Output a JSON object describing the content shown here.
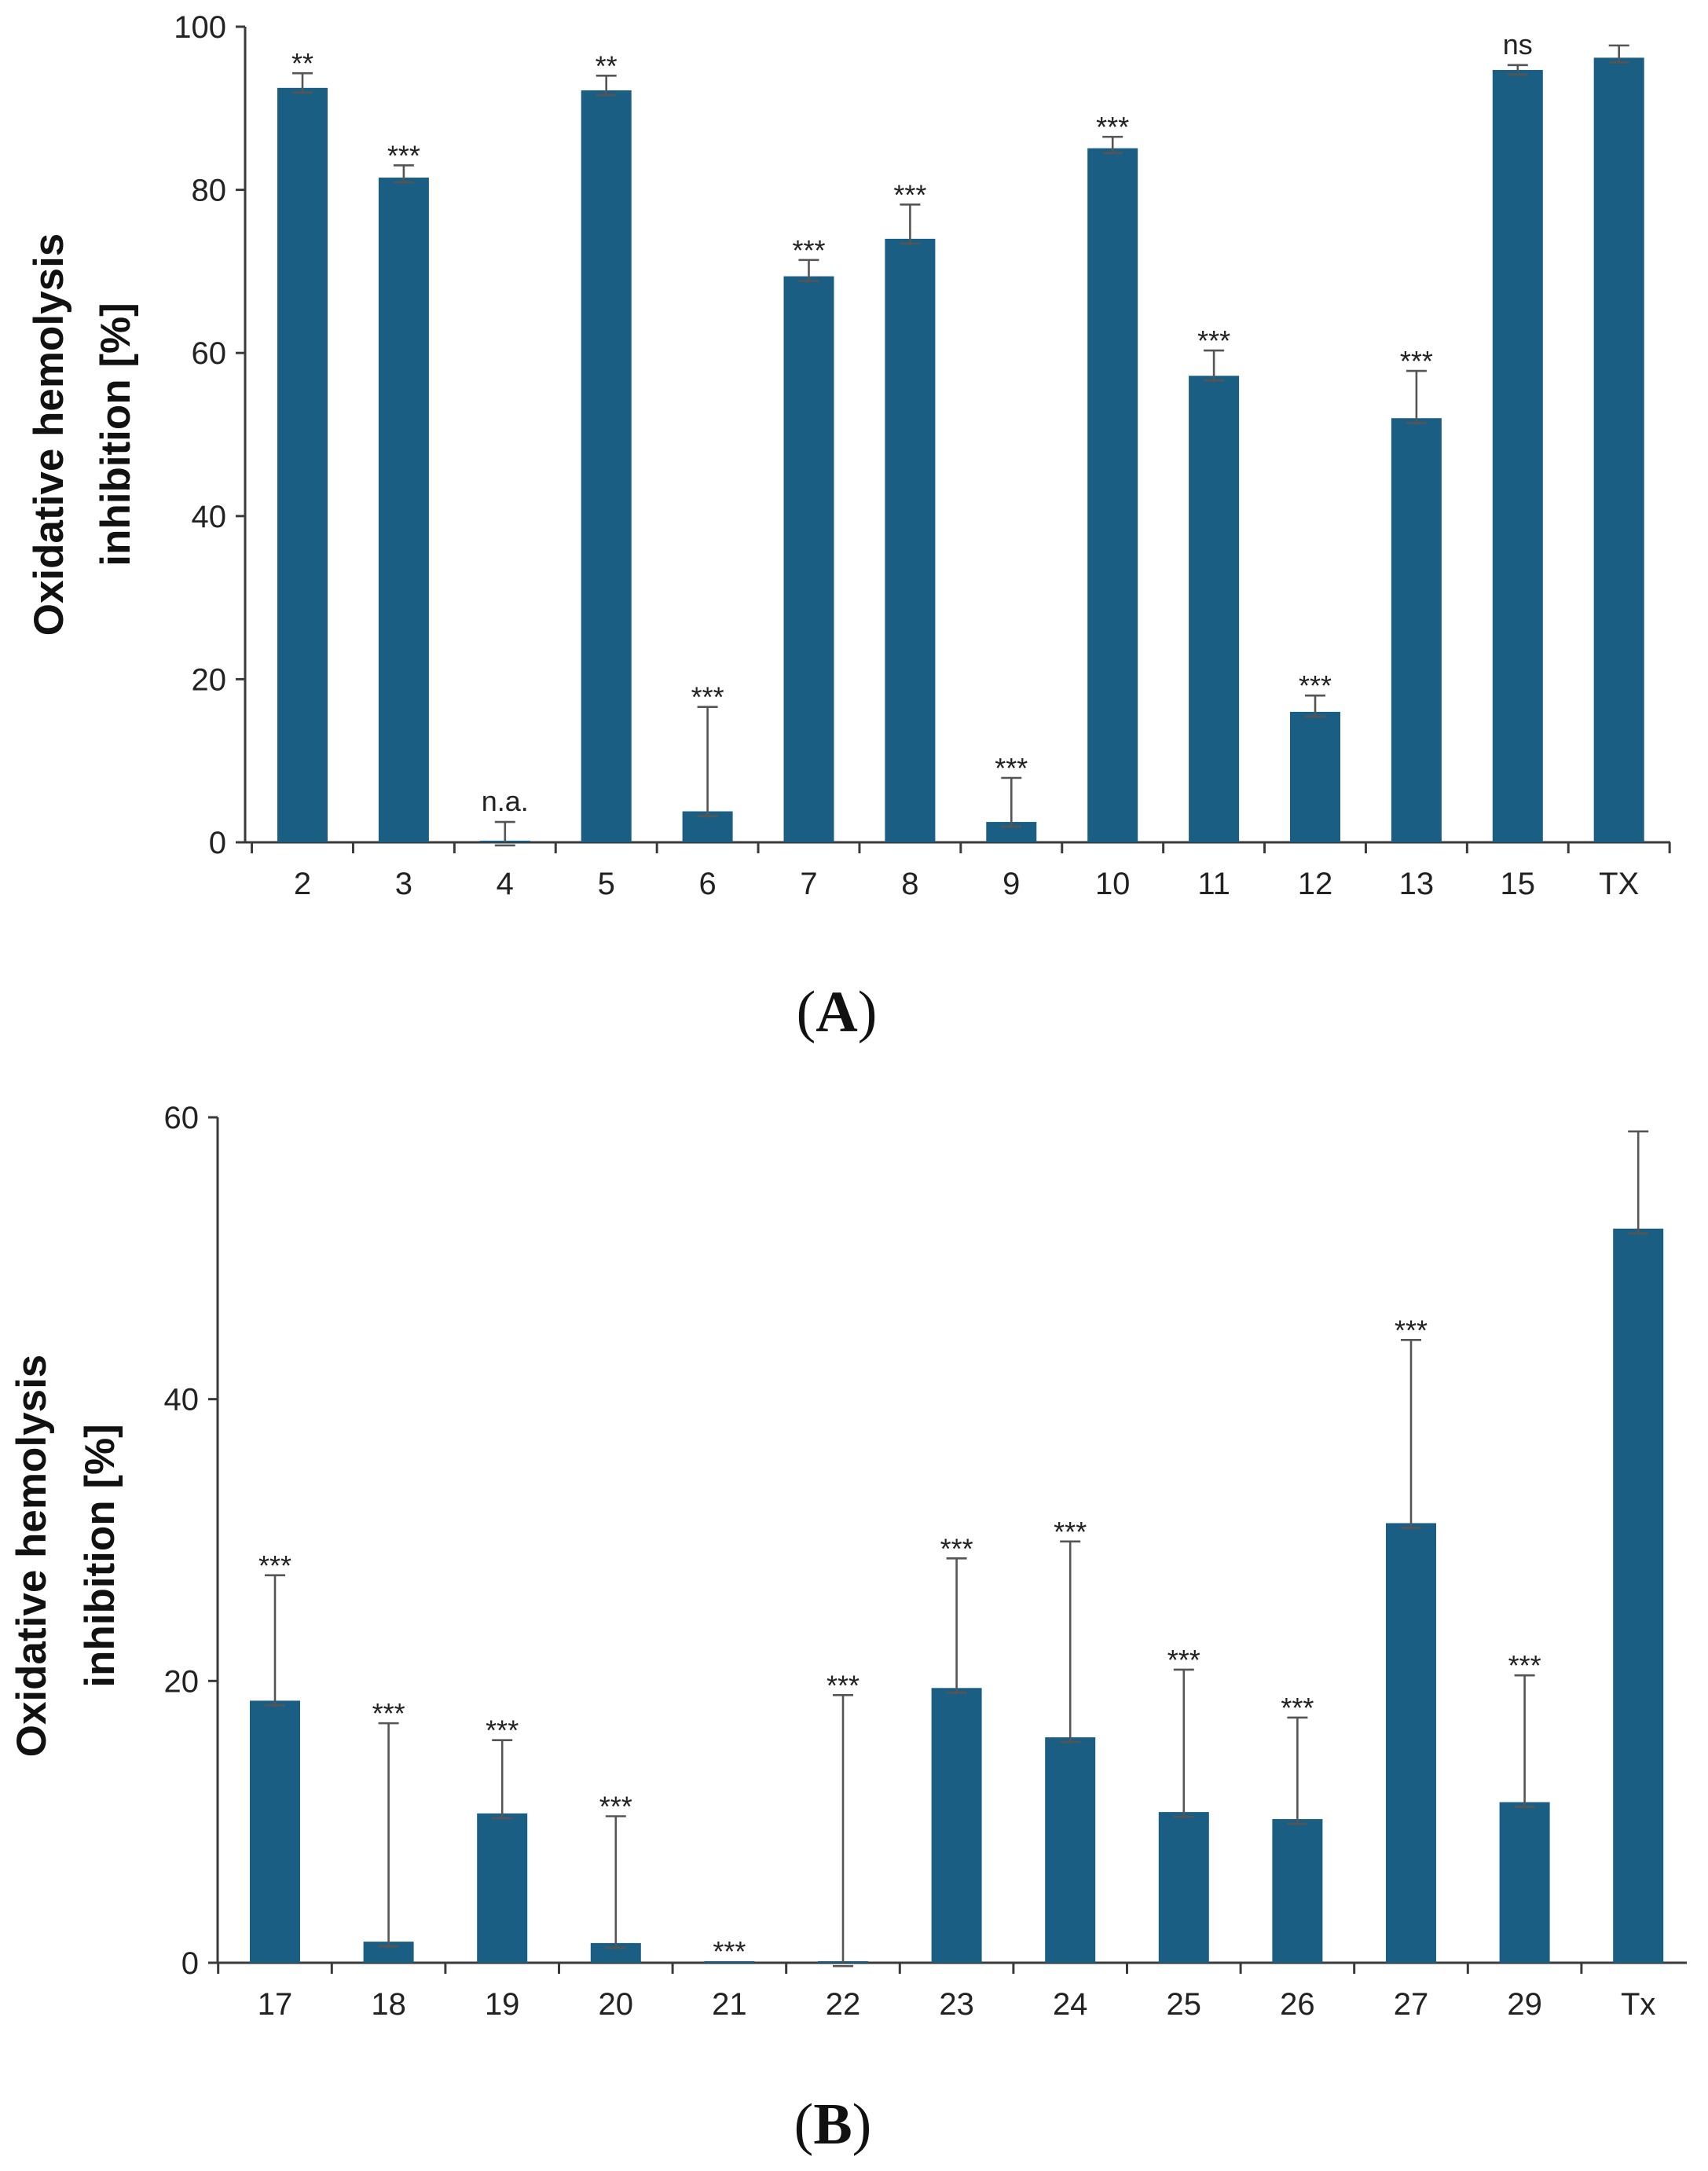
{
  "chart_data": [
    {
      "type": "bar",
      "panel_label": "A",
      "ylabel_line1": "Oxidative hemolysis",
      "ylabel_line2": "inhibition [%]",
      "ylim": [
        0,
        100
      ],
      "yticks": [
        0,
        20,
        40,
        60,
        80,
        100
      ],
      "categories": [
        "2",
        "3",
        "4",
        "5",
        "6",
        "7",
        "8",
        "9",
        "10",
        "11",
        "12",
        "13",
        "15",
        "TX"
      ],
      "values": [
        92.5,
        81.5,
        0.2,
        92.2,
        3.8,
        69.4,
        74.0,
        2.5,
        85.1,
        57.2,
        16.0,
        52.0,
        94.7,
        96.2
      ],
      "errors": [
        1.8,
        1.5,
        2.3,
        1.8,
        12.8,
        2.0,
        4.2,
        5.4,
        1.4,
        3.1,
        2.0,
        5.8,
        0.6,
        1.5
      ],
      "significance": [
        "**",
        "***",
        "n.a.",
        "**",
        "***",
        "***",
        "***",
        "***",
        "***",
        "***",
        "***",
        "***",
        "ns",
        ""
      ],
      "bar_color": "#1b5e83"
    },
    {
      "type": "bar",
      "panel_label": "B",
      "ylabel_line1": "Oxidative hemolysis",
      "ylabel_line2": "inhibition [%]",
      "ylim": [
        0,
        60
      ],
      "yticks": [
        0,
        20,
        40,
        60
      ],
      "categories": [
        "17",
        "18",
        "19",
        "20",
        "21",
        "22",
        "23",
        "24",
        "25",
        "26",
        "27",
        "29",
        "Tx"
      ],
      "values": [
        18.6,
        1.5,
        10.6,
        1.4,
        0.1,
        0.1,
        19.5,
        16.0,
        10.7,
        10.2,
        31.2,
        11.4,
        52.1
      ],
      "errors": [
        8.9,
        15.5,
        5.2,
        9.0,
        0.0,
        18.9,
        9.2,
        13.9,
        10.1,
        7.2,
        13.0,
        9.0,
        6.9
      ],
      "significance": [
        "***",
        "***",
        "***",
        "***",
        "***",
        "***",
        "***",
        "***",
        "***",
        "***",
        "***",
        "***",
        ""
      ],
      "bar_color": "#1b5e83"
    }
  ]
}
